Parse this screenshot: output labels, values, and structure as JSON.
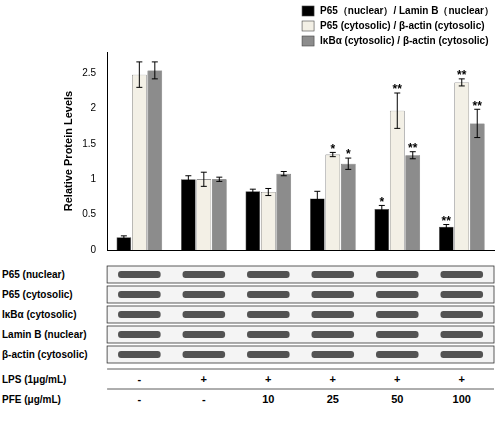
{
  "chart_data": {
    "type": "bar",
    "y_label": "Relative Protein Levels",
    "categories": [
      null,
      null,
      null,
      null,
      null,
      null
    ],
    "series": [
      {
        "name": "P65（nuclear）/ Lamin B（nuclear）",
        "color": "#000000",
        "values": [
          0.18,
          1.0,
          0.83,
          0.73,
          0.58,
          0.33
        ],
        "errors": [
          0.02,
          0.05,
          0.03,
          0.1,
          0.05,
          0.03
        ],
        "significance": [
          null,
          null,
          null,
          null,
          "*",
          "**"
        ]
      },
      {
        "name": "P65 (cytosolic) / β-actin (cytosolic)",
        "color": "#f3f0e6",
        "values": [
          2.48,
          1.0,
          0.82,
          1.35,
          1.97,
          2.37
        ],
        "errors": [
          0.18,
          0.1,
          0.05,
          0.03,
          0.25,
          0.05
        ],
        "significance": [
          null,
          null,
          null,
          "*",
          "**",
          "**"
        ]
      },
      {
        "name": "IκBα (cytosolic) / β-actin (cytosolic)",
        "color": "#8c8c8c",
        "values": [
          2.54,
          1.0,
          1.08,
          1.22,
          1.34,
          1.79
        ],
        "errors": [
          0.12,
          0.03,
          0.03,
          0.08,
          0.05,
          0.2
        ],
        "significance": [
          null,
          null,
          null,
          "*",
          "**",
          "**"
        ]
      }
    ],
    "ylim": [
      0,
      2.8
    ],
    "yticks": [
      0,
      0.5,
      1,
      1.5,
      2,
      2.5
    ],
    "grid": false,
    "legend": "top-right",
    "tick_labels": "y"
  },
  "blot": {
    "rows": [
      "P65 (nuclear)",
      "P65 (cytosolic)",
      "IκBα (cytosolic)",
      "Lamin B (nuclear)",
      "β-actin (cytosolic)"
    ],
    "treatments": [
      {
        "label": "LPS (1μg/mL)",
        "values": [
          "-",
          "+",
          "+",
          "+",
          "+",
          "+"
        ]
      },
      {
        "label": "PFE (μg/mL)",
        "values": [
          "-",
          "-",
          "10",
          "25",
          "50",
          "100"
        ]
      }
    ]
  }
}
